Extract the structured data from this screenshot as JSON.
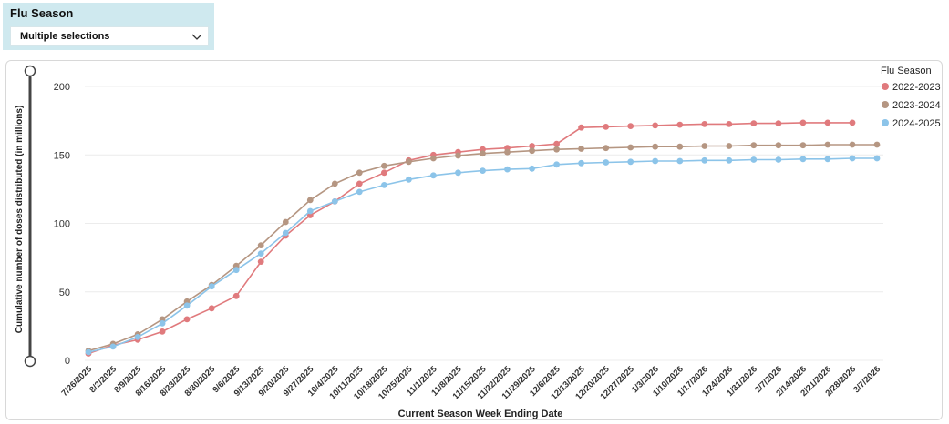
{
  "slicer": {
    "title": "Flu Season",
    "selected_label": "Multiple selections",
    "icon": "chevron-down-icon"
  },
  "chart_data": {
    "type": "line",
    "title": "",
    "xlabel": "Current Season Week Ending Date",
    "ylabel": "Cumulative number of doses distributed (in millions)",
    "ylim": [
      0,
      200
    ],
    "yticks": [
      0,
      50,
      100,
      150,
      200
    ],
    "grid": true,
    "legend_title": "Flu Season",
    "legend_position": "top-right",
    "categories": [
      "7/26/2025",
      "8/2/2025",
      "8/9/2025",
      "8/16/2025",
      "8/23/2025",
      "8/30/2025",
      "9/6/2025",
      "9/13/2025",
      "9/20/2025",
      "9/27/2025",
      "10/4/2025",
      "10/11/2025",
      "10/18/2025",
      "10/25/2025",
      "11/1/2025",
      "11/8/2025",
      "11/15/2025",
      "11/22/2025",
      "11/29/2025",
      "12/6/2025",
      "12/13/2025",
      "12/20/2025",
      "12/27/2025",
      "1/3/2026",
      "1/10/2026",
      "1/17/2026",
      "1/24/2026",
      "1/31/2026",
      "2/7/2026",
      "2/14/2026",
      "2/21/2026",
      "2/28/2026",
      "3/7/2026"
    ],
    "series": [
      {
        "name": "2022-2023",
        "color": "#e07a7d",
        "values": [
          5,
          11,
          15,
          21,
          30,
          38,
          47,
          72,
          91,
          106,
          116,
          129,
          137,
          146,
          150,
          152,
          154,
          155,
          156.5,
          158,
          170,
          170.5,
          171,
          171.5,
          172,
          172.5,
          172.5,
          173,
          173,
          173.5,
          173.5,
          173.5,
          null
        ]
      },
      {
        "name": "2023-2024",
        "color": "#b59682",
        "values": [
          7,
          12,
          19,
          30,
          43,
          55,
          69,
          84,
          101,
          117,
          129,
          137,
          142,
          145,
          147.5,
          149.5,
          151,
          152,
          153,
          154,
          154.5,
          155,
          155.5,
          156,
          156,
          156.5,
          156.5,
          157,
          157,
          157,
          157.5,
          157.5,
          157.5
        ]
      },
      {
        "name": "2024-2025",
        "color": "#8cc4e9",
        "values": [
          6,
          10,
          17,
          27,
          40,
          54,
          66,
          78,
          93,
          109,
          116,
          123,
          128,
          132,
          135,
          137,
          138.5,
          139.5,
          140,
          143,
          144,
          144.5,
          145,
          145.5,
          145.5,
          146,
          146,
          146.5,
          146.5,
          147,
          147,
          147.5,
          147.5
        ]
      }
    ]
  }
}
